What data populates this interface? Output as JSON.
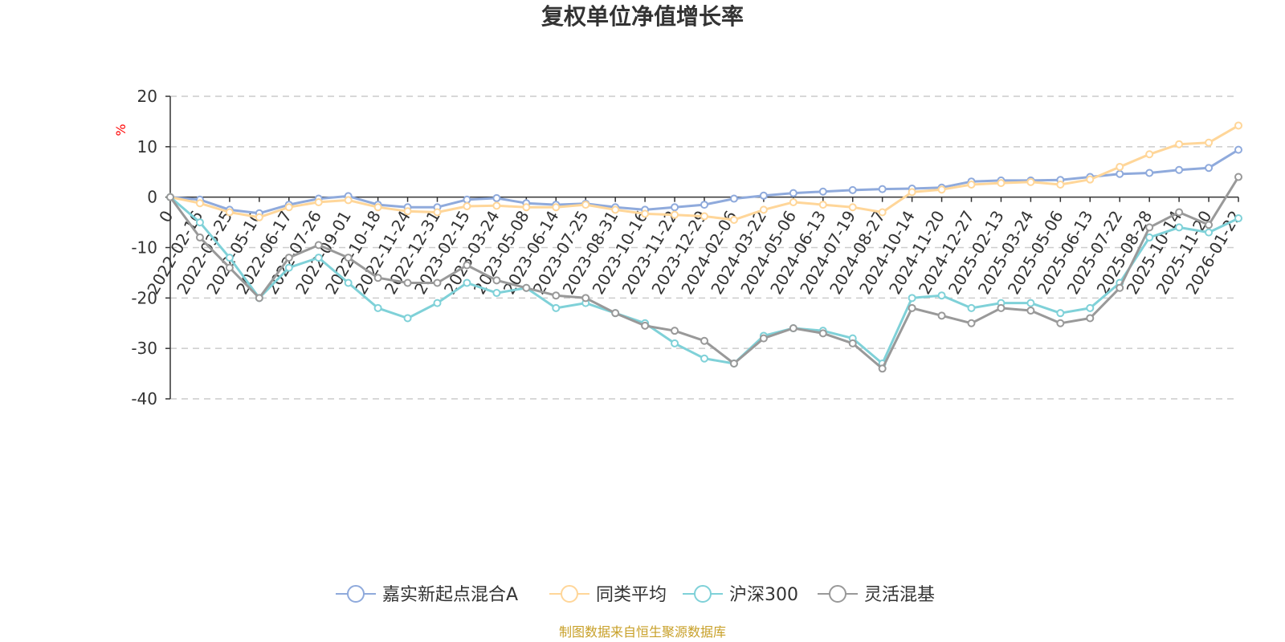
{
  "chart_data": {
    "type": "line",
    "title": "复权单位净值增长率",
    "ylabel": "%",
    "ylim": [
      -40,
      20
    ],
    "yticks": [
      20,
      10,
      0,
      -10,
      -20,
      -30,
      -40
    ],
    "categories": [
      "0",
      "2022-02-16",
      "2022-03-25",
      "2022-05-10",
      "2022-06-17",
      "2022-07-26",
      "2022-09-01",
      "2022-10-18",
      "2022-11-24",
      "2022-12-31",
      "2023-02-15",
      "2023-03-24",
      "2023-05-08",
      "2023-06-14",
      "2023-07-25",
      "2023-08-31",
      "2023-10-16",
      "2023-11-22",
      "2023-12-29",
      "2024-02-06",
      "2024-03-22",
      "2024-05-06",
      "2024-06-13",
      "2024-07-19",
      "2024-08-27",
      "2024-10-14",
      "2024-11-20",
      "2024-12-27",
      "2025-02-13",
      "2025-03-24",
      "2025-05-06",
      "2025-06-13",
      "2025-07-22",
      "2025-08-28",
      "2025-10-14",
      "2025-11-20",
      "2026-01-22"
    ],
    "series": [
      {
        "name": "嘉实新起点混合A",
        "color": "#8faadc",
        "values": [
          0,
          -0.5,
          -2.5,
          -3.2,
          -1.5,
          -0.3,
          0.2,
          -1.5,
          -2.0,
          -2.0,
          -0.5,
          -0.2,
          -1.2,
          -1.5,
          -1.3,
          -2.0,
          -2.5,
          -2.0,
          -1.5,
          -0.3,
          0.3,
          0.8,
          1.1,
          1.4,
          1.6,
          1.7,
          1.9,
          3.1,
          3.3,
          3.3,
          3.4,
          4.0,
          4.6,
          4.8,
          5.4,
          5.8,
          9.4
        ]
      },
      {
        "name": "同类平均",
        "color": "#ffd699",
        "values": [
          0,
          -1.2,
          -3.0,
          -4.0,
          -2.0,
          -1.0,
          -0.6,
          -2.0,
          -2.8,
          -3.0,
          -1.8,
          -1.7,
          -2.0,
          -2.0,
          -1.5,
          -2.5,
          -3.3,
          -3.5,
          -3.8,
          -4.5,
          -2.5,
          -1.0,
          -1.5,
          -2.0,
          -3.0,
          1.0,
          1.5,
          2.5,
          2.8,
          3.0,
          2.5,
          3.5,
          6.0,
          8.5,
          10.5,
          10.8,
          14.2
        ]
      },
      {
        "name": "沪深300",
        "color": "#7fd1d8",
        "values": [
          0,
          -5.0,
          -12.0,
          -20.0,
          -14.0,
          -12.0,
          -17.0,
          -22.0,
          -24.0,
          -21.0,
          -17.0,
          -19.0,
          -18.0,
          -22.0,
          -21.0,
          -23.0,
          -25.0,
          -29.0,
          -32.0,
          -33.0,
          -27.5,
          -26.0,
          -26.5,
          -28.0,
          -33.0,
          -20.0,
          -19.5,
          -22.0,
          -21.0,
          -21.0,
          -23.0,
          -22.0,
          -17.0,
          -8.0,
          -6.0,
          -7.0,
          -4.2
        ]
      },
      {
        "name": "灵活混基",
        "color": "#999999",
        "values": [
          0,
          -8.0,
          -14.0,
          -20.0,
          -12.0,
          -9.5,
          -12.0,
          -16.0,
          -17.0,
          -17.0,
          -13.5,
          -16.5,
          -18.0,
          -19.5,
          -20.0,
          -23.0,
          -25.5,
          -26.5,
          -28.5,
          -33.0,
          -28.0,
          -26.0,
          -27.0,
          -29.0,
          -34.0,
          -22.0,
          -23.5,
          -25.0,
          -22.0,
          -22.5,
          -25.0,
          -24.0,
          -18.0,
          -6.0,
          -3.0,
          -5.5,
          4.0
        ]
      }
    ]
  },
  "source_note": "制图数据来自恒生聚源数据库"
}
